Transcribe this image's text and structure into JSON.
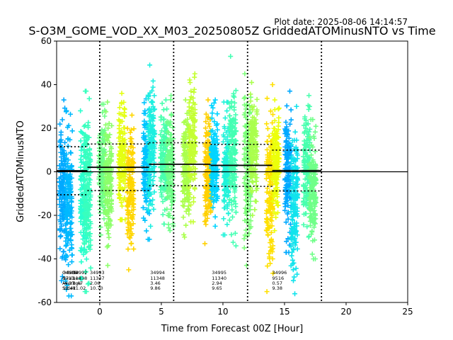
{
  "plot_date": "Plot date: 2025-08-06 14:14:57",
  "chart_data": {
    "type": "scatter",
    "title": "S-O3M_GOME_VOD_XX_M03_20250805Z GriddedATOMinusNTO vs Time",
    "xlabel": "Time from Forecast 00Z [Hour]",
    "ylabel": "GriddedATOMinusNTO",
    "xlim": [
      -3.5,
      25
    ],
    "ylim": [
      -60,
      60
    ],
    "xticks": [
      0,
      5,
      10,
      15,
      20,
      25
    ],
    "yticks": [
      -60,
      -40,
      -20,
      0,
      20,
      40,
      60
    ],
    "grid": false,
    "vlines_dotted": [
      0,
      6,
      12,
      18
    ],
    "zero_line": 0,
    "marker": "+",
    "columns": [
      {
        "x": -3.0,
        "color": "#00a9ff",
        "min": -50,
        "max": 33
      },
      {
        "x": -2.5,
        "color": "#00b9ff",
        "min": -57,
        "max": 28
      },
      {
        "x": -1.3,
        "color": "#28ffce",
        "min": -49,
        "max": 28
      },
      {
        "x": -1.0,
        "color": "#38ffbe",
        "min": -55,
        "max": 37
      },
      {
        "x": 0.2,
        "color": "#6fff88",
        "min": -29,
        "max": 31
      },
      {
        "x": 0.7,
        "color": "#8cff6a",
        "min": -43,
        "max": 32
      },
      {
        "x": 1.8,
        "color": "#e4ff13",
        "min": -22,
        "max": 36
      },
      {
        "x": 2.5,
        "color": "#ffd600",
        "min": -45,
        "max": 26
      },
      {
        "x": 3.8,
        "color": "#00c4ff",
        "min": -31,
        "max": 35
      },
      {
        "x": 4.2,
        "color": "#1cefe0",
        "min": -25,
        "max": 49
      },
      {
        "x": 5.2,
        "color": "#48ffae",
        "min": -24,
        "max": 33
      },
      {
        "x": 5.7,
        "color": "#6fff88",
        "min": -27,
        "max": 35
      },
      {
        "x": 7.0,
        "color": "#aaff4d",
        "min": -30,
        "max": 33
      },
      {
        "x": 7.5,
        "color": "#c4ff33",
        "min": -23,
        "max": 45
      },
      {
        "x": 8.8,
        "color": "#ffd000",
        "min": -33,
        "max": 33
      },
      {
        "x": 9.3,
        "color": "#00d4ff",
        "min": -25,
        "max": 33
      },
      {
        "x": 10.3,
        "color": "#22f3da",
        "min": -29,
        "max": 32
      },
      {
        "x": 10.8,
        "color": "#44ffb3",
        "min": -34,
        "max": 53
      },
      {
        "x": 12.0,
        "color": "#7dff7a",
        "min": -43,
        "max": 45
      },
      {
        "x": 12.5,
        "color": "#aaff4d",
        "min": -20,
        "max": 41
      },
      {
        "x": 13.8,
        "color": "#ffe000",
        "min": -55,
        "max": 40
      },
      {
        "x": 14.3,
        "color": "#ecff0a",
        "min": -27,
        "max": 33
      },
      {
        "x": 15.3,
        "color": "#00a9ff",
        "min": -37,
        "max": 37
      },
      {
        "x": 15.8,
        "color": "#11e3ec",
        "min": -56,
        "max": 30
      },
      {
        "x": 16.8,
        "color": "#48ffae",
        "min": -30,
        "max": 35
      },
      {
        "x": 17.3,
        "color": "#6fff88",
        "min": -40,
        "max": 24
      }
    ],
    "mean_segments": [
      {
        "x0": -3.5,
        "x1": -1.0,
        "y": 0.47
      },
      {
        "x0": -1.0,
        "x1": 4.0,
        "y": 2.06
      },
      {
        "x0": 4.0,
        "x1": 9.0,
        "y": 3.46
      },
      {
        "x0": 9.0,
        "x1": 14.0,
        "y": 2.94
      },
      {
        "x0": 14.0,
        "x1": 18.0,
        "y": 0.57
      }
    ],
    "stdev_segments": [
      {
        "x0": -3.5,
        "x1": -1.0,
        "lo": -10.55,
        "hi": 11.49
      },
      {
        "x0": -1.0,
        "x1": 4.0,
        "lo": -8.64,
        "hi": 12.76
      },
      {
        "x0": 4.0,
        "x1": 9.0,
        "lo": -6.4,
        "hi": 13.32
      },
      {
        "x0": 9.0,
        "x1": 14.0,
        "lo": -6.71,
        "hi": 12.59
      },
      {
        "x0": 14.0,
        "x1": 18.0,
        "lo": -8.81,
        "hi": 9.95
      }
    ],
    "stats_labels": {
      "header": [
        "OrbitNr",
        "Nvalues",
        "Average",
        "Stdev"
      ],
      "blocks": [
        {
          "x": -3.0,
          "lines": [
            "34989",
            "1711",
            "-4.37",
            "12.41"
          ]
        },
        {
          "x": -2.2,
          "lines": [
            "34992",
            "11338",
            "0.47",
            "11.02"
          ]
        },
        {
          "x": -0.8,
          "lines": [
            "34993",
            "11347",
            "2.06",
            "10.70"
          ]
        },
        {
          "x": 4.1,
          "lines": [
            "34994",
            "11348",
            "3.46",
            "9.86"
          ]
        },
        {
          "x": 9.1,
          "lines": [
            "34995",
            "11340",
            "2.94",
            "9.65"
          ]
        },
        {
          "x": 14.0,
          "lines": [
            "34996",
            "9516",
            "0.57",
            "9.38"
          ]
        }
      ]
    }
  }
}
